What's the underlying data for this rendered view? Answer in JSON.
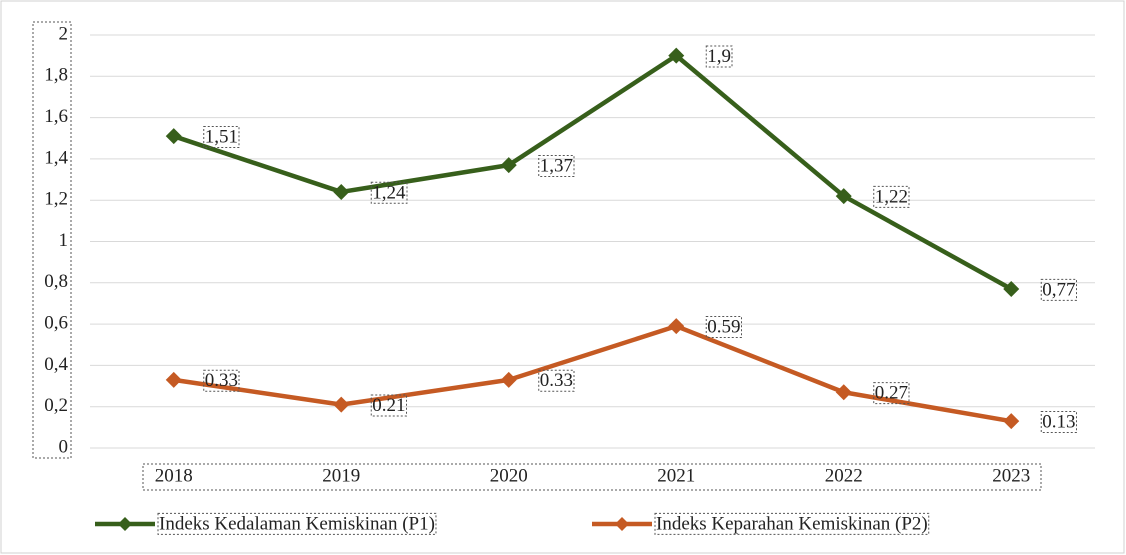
{
  "chart_data": {
    "type": "line",
    "categories": [
      "2018",
      "2019",
      "2020",
      "2021",
      "2022",
      "2023"
    ],
    "series": [
      {
        "name": "Indeks Kedalaman Kemiskinan (P1)",
        "color": "#375f1b",
        "values": [
          1.51,
          1.24,
          1.37,
          1.9,
          1.22,
          0.77
        ],
        "value_labels": [
          "1,51",
          "1,24",
          "1,37",
          "1,9",
          "1,22",
          "0,77"
        ]
      },
      {
        "name": "Indeks Keparahan Kemiskinan (P2)",
        "color": "#c55a23",
        "values": [
          0.33,
          0.21,
          0.33,
          0.59,
          0.27,
          0.13
        ]
      }
    ],
    "ylim": [
      0,
      2
    ],
    "yticks": [
      0,
      {
        "value": 0.2,
        "label": "0,2"
      },
      {
        "value": 0.4,
        "label": "0,4"
      },
      {
        "value": 0.6,
        "label": "0,6"
      },
      {
        "value": 0.8,
        "label": "0,8"
      },
      1,
      {
        "value": 1.2,
        "label": "1,2"
      },
      {
        "value": 1.4,
        "label": "1,4"
      },
      {
        "value": 1.6,
        "label": "1,6"
      },
      {
        "value": 1.8,
        "label": "1,8"
      },
      2
    ],
    "grid": true,
    "legend": "bottom"
  }
}
